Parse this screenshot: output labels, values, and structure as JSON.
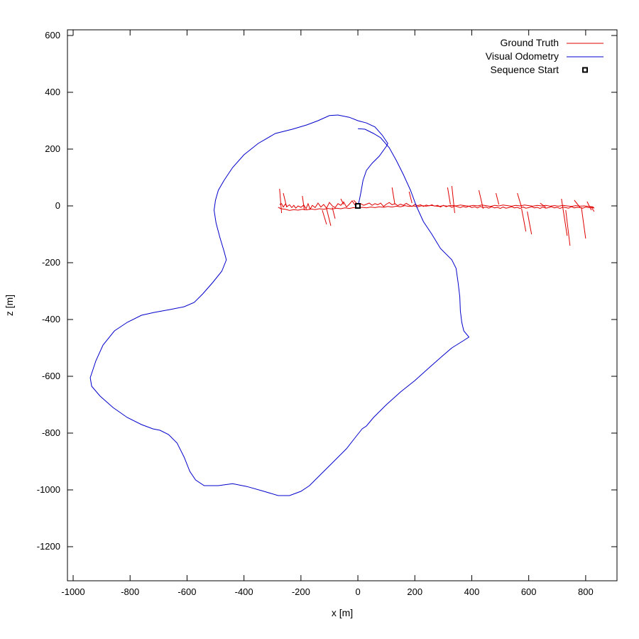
{
  "chart_data": {
    "type": "line",
    "xlabel": "x [m]",
    "ylabel": "z [m]",
    "xlim": [
      -1020,
      910
    ],
    "ylim": [
      -1320,
      620
    ],
    "xticks": [
      -1000,
      -800,
      -600,
      -400,
      -200,
      0,
      200,
      400,
      600,
      800
    ],
    "yticks": [
      600,
      400,
      200,
      0,
      -200,
      -400,
      -600,
      -800,
      -1000,
      -1200
    ],
    "grid": false,
    "legend_position": "top-right",
    "colors": {
      "ground_truth": "#e00000",
      "visual_odometry": "#0000cc",
      "start": "#000000"
    },
    "series": [
      {
        "name": "Ground Truth",
        "points": [
          [
            -275,
            5
          ],
          [
            -268,
            8
          ],
          [
            -262,
            -4
          ],
          [
            -255,
            6
          ],
          [
            -248,
            -2
          ],
          [
            -240,
            4
          ],
          [
            -232,
            -6
          ],
          [
            -225,
            2
          ],
          [
            -218,
            -8
          ],
          [
            -210,
            0
          ],
          [
            -200,
            -5
          ],
          [
            -190,
            3
          ],
          [
            -182,
            -10
          ],
          [
            -175,
            8
          ],
          [
            -168,
            -12
          ],
          [
            -160,
            2
          ],
          [
            -150,
            -6
          ],
          [
            -140,
            10
          ],
          [
            -130,
            -4
          ],
          [
            -120,
            5
          ],
          [
            -110,
            -8
          ],
          [
            -100,
            12
          ],
          [
            -90,
            0
          ],
          [
            -80,
            -6
          ],
          [
            -70,
            8
          ],
          [
            -60,
            2
          ],
          [
            -50,
            14
          ],
          [
            -40,
            -4
          ],
          [
            -30,
            6
          ],
          [
            -20,
            18
          ],
          [
            -10,
            3
          ],
          [
            0,
            0
          ],
          [
            10,
            8
          ],
          [
            20,
            2
          ],
          [
            30,
            6
          ],
          [
            40,
            10
          ],
          [
            50,
            2
          ],
          [
            60,
            8
          ],
          [
            70,
            4
          ],
          [
            80,
            10
          ],
          [
            90,
            -2
          ],
          [
            100,
            6
          ],
          [
            110,
            12
          ],
          [
            120,
            4
          ],
          [
            130,
            8
          ],
          [
            140,
            1
          ],
          [
            150,
            6
          ],
          [
            160,
            2
          ],
          [
            170,
            9
          ],
          [
            180,
            3
          ],
          [
            190,
            -2
          ],
          [
            200,
            5
          ],
          [
            210,
            1
          ],
          [
            220,
            4
          ],
          [
            230,
            -2
          ],
          [
            240,
            3
          ],
          [
            250,
            0
          ],
          [
            260,
            4
          ],
          [
            270,
            -1
          ],
          [
            280,
            2
          ],
          [
            290,
            -4
          ],
          [
            300,
            2
          ],
          [
            310,
            -3
          ],
          [
            320,
            1
          ],
          [
            330,
            -5
          ],
          [
            340,
            0
          ],
          [
            350,
            -3
          ],
          [
            360,
            -6
          ],
          [
            370,
            -2
          ],
          [
            380,
            -5
          ],
          [
            390,
            -1
          ],
          [
            400,
            -6
          ],
          [
            410,
            -3
          ],
          [
            420,
            -7
          ],
          [
            430,
            -2
          ],
          [
            440,
            -6
          ],
          [
            450,
            -4
          ],
          [
            460,
            -8
          ],
          [
            470,
            -3
          ],
          [
            480,
            -7
          ],
          [
            490,
            -5
          ],
          [
            500,
            -9
          ],
          [
            510,
            -4
          ],
          [
            520,
            -8
          ],
          [
            530,
            -6
          ],
          [
            540,
            -3
          ],
          [
            550,
            -7
          ],
          [
            560,
            -5
          ],
          [
            570,
            -9
          ],
          [
            580,
            -4
          ],
          [
            590,
            -8
          ],
          [
            600,
            -6
          ],
          [
            610,
            -3
          ],
          [
            620,
            -7
          ],
          [
            630,
            -5
          ],
          [
            640,
            -9
          ],
          [
            650,
            -4
          ],
          [
            660,
            -8
          ],
          [
            670,
            -6
          ],
          [
            680,
            -3
          ],
          [
            690,
            -7
          ],
          [
            700,
            -5
          ],
          [
            710,
            -9
          ],
          [
            720,
            -4
          ],
          [
            730,
            -6
          ],
          [
            740,
            -8
          ],
          [
            750,
            -3
          ],
          [
            760,
            -7
          ],
          [
            770,
            -5
          ],
          [
            780,
            -6
          ],
          [
            790,
            -8
          ],
          [
            800,
            -4
          ],
          [
            810,
            -6
          ],
          [
            820,
            -5
          ],
          [
            830,
            -8
          ],
          [
            825,
            -3
          ],
          [
            810,
            -2
          ],
          [
            795,
            0
          ],
          [
            780,
            -1
          ],
          [
            765,
            1
          ],
          [
            750,
            -2
          ],
          [
            735,
            0
          ],
          [
            720,
            2
          ],
          [
            705,
            -1
          ],
          [
            690,
            1
          ],
          [
            675,
            -1
          ],
          [
            660,
            2
          ],
          [
            645,
            0
          ],
          [
            630,
            2
          ],
          [
            615,
            -1
          ],
          [
            600,
            1
          ],
          [
            585,
            3
          ],
          [
            570,
            0
          ],
          [
            555,
            2
          ],
          [
            540,
            -1
          ],
          [
            525,
            1
          ],
          [
            510,
            3
          ],
          [
            495,
            0
          ],
          [
            480,
            2
          ],
          [
            465,
            -2
          ],
          [
            450,
            1
          ],
          [
            435,
            3
          ],
          [
            420,
            0
          ],
          [
            405,
            2
          ],
          [
            390,
            -1
          ],
          [
            375,
            1
          ],
          [
            360,
            3
          ],
          [
            345,
            0
          ],
          [
            330,
            2
          ],
          [
            315,
            -1
          ],
          [
            300,
            1
          ],
          [
            285,
            -2
          ],
          [
            270,
            0
          ],
          [
            255,
            2
          ],
          [
            240,
            -1
          ],
          [
            225,
            1
          ],
          [
            210,
            -3
          ],
          [
            195,
            0
          ],
          [
            180,
            -2
          ],
          [
            165,
            1
          ],
          [
            150,
            -3
          ],
          [
            135,
            -1
          ],
          [
            120,
            -4
          ],
          [
            105,
            -2
          ],
          [
            90,
            -5
          ],
          [
            75,
            -3
          ],
          [
            60,
            -6
          ],
          [
            45,
            -4
          ],
          [
            30,
            -7
          ],
          [
            15,
            -5
          ],
          [
            0,
            -8
          ],
          [
            -15,
            -6
          ],
          [
            -30,
            -9
          ],
          [
            -45,
            -7
          ],
          [
            -60,
            -10
          ],
          [
            -75,
            -8
          ],
          [
            -90,
            -11
          ],
          [
            -105,
            -9
          ],
          [
            -120,
            -12
          ],
          [
            -135,
            -10
          ],
          [
            -150,
            -13
          ],
          [
            -165,
            -11
          ],
          [
            -180,
            -14
          ],
          [
            -195,
            -12
          ],
          [
            -210,
            -15
          ],
          [
            -225,
            -13
          ],
          [
            -240,
            -16
          ],
          [
            -255,
            -12
          ],
          [
            -270,
            -10
          ],
          [
            -280,
            -5
          ]
        ],
        "spikes": [
          [
            -275,
            60,
            -268,
            -25
          ],
          [
            -262,
            45,
            -250,
            -5
          ],
          [
            -195,
            35,
            -188,
            -15
          ],
          [
            -125,
            -15,
            -110,
            -65
          ],
          [
            -110,
            -10,
            -95,
            -70
          ],
          [
            -90,
            -5,
            -80,
            -45
          ],
          [
            -60,
            25,
            -50,
            5
          ],
          [
            -15,
            20,
            -5,
            10
          ],
          [
            120,
            65,
            130,
            5
          ],
          [
            180,
            50,
            190,
            10
          ],
          [
            315,
            65,
            325,
            5
          ],
          [
            330,
            70,
            340,
            -25
          ],
          [
            425,
            55,
            440,
            -10
          ],
          [
            485,
            45,
            495,
            5
          ],
          [
            560,
            45,
            575,
            -5
          ],
          [
            575,
            -10,
            590,
            -90
          ],
          [
            595,
            -20,
            610,
            -100
          ],
          [
            640,
            10,
            660,
            -5
          ],
          [
            715,
            25,
            735,
            -105
          ],
          [
            730,
            -15,
            745,
            -140
          ],
          [
            760,
            20,
            780,
            -5
          ],
          [
            785,
            -5,
            800,
            -115
          ],
          [
            805,
            15,
            820,
            -15
          ],
          [
            820,
            -5,
            830,
            -20
          ]
        ]
      },
      {
        "name": "Visual Odometry",
        "points": [
          [
            0,
            0
          ],
          [
            5,
            20
          ],
          [
            10,
            45
          ],
          [
            18,
            90
          ],
          [
            30,
            125
          ],
          [
            50,
            150
          ],
          [
            75,
            175
          ],
          [
            100,
            210
          ],
          [
            105,
            220
          ],
          [
            85,
            250
          ],
          [
            60,
            278
          ],
          [
            30,
            292
          ],
          [
            0,
            300
          ],
          [
            -30,
            312
          ],
          [
            -70,
            320
          ],
          [
            -100,
            318
          ],
          [
            -140,
            300
          ],
          [
            -180,
            285
          ],
          [
            -230,
            270
          ],
          [
            -290,
            255
          ],
          [
            -350,
            220
          ],
          [
            -400,
            180
          ],
          [
            -440,
            135
          ],
          [
            -470,
            90
          ],
          [
            -490,
            55
          ],
          [
            -500,
            20
          ],
          [
            -505,
            -15
          ],
          [
            -498,
            -60
          ],
          [
            -485,
            -110
          ],
          [
            -470,
            -160
          ],
          [
            -462,
            -190
          ],
          [
            -478,
            -230
          ],
          [
            -510,
            -270
          ],
          [
            -545,
            -310
          ],
          [
            -575,
            -340
          ],
          [
            -610,
            -355
          ],
          [
            -660,
            -365
          ],
          [
            -715,
            -375
          ],
          [
            -760,
            -385
          ],
          [
            -810,
            -410
          ],
          [
            -855,
            -440
          ],
          [
            -895,
            -490
          ],
          [
            -920,
            -545
          ],
          [
            -940,
            -605
          ],
          [
            -935,
            -635
          ],
          [
            -905,
            -670
          ],
          [
            -860,
            -710
          ],
          [
            -810,
            -745
          ],
          [
            -760,
            -770
          ],
          [
            -720,
            -785
          ],
          [
            -695,
            -790
          ],
          [
            -665,
            -805
          ],
          [
            -635,
            -835
          ],
          [
            -610,
            -885
          ],
          [
            -590,
            -935
          ],
          [
            -570,
            -965
          ],
          [
            -540,
            -985
          ],
          [
            -490,
            -985
          ],
          [
            -440,
            -978
          ],
          [
            -390,
            -988
          ],
          [
            -330,
            -1005
          ],
          [
            -280,
            -1020
          ],
          [
            -240,
            -1020
          ],
          [
            -200,
            -1005
          ],
          [
            -170,
            -985
          ],
          [
            -130,
            -945
          ],
          [
            -90,
            -905
          ],
          [
            -40,
            -855
          ],
          [
            -5,
            -810
          ],
          [
            15,
            -785
          ],
          [
            30,
            -775
          ],
          [
            55,
            -745
          ],
          [
            100,
            -700
          ],
          [
            150,
            -655
          ],
          [
            200,
            -615
          ],
          [
            250,
            -570
          ],
          [
            295,
            -530
          ],
          [
            330,
            -500
          ],
          [
            370,
            -475
          ],
          [
            390,
            -462
          ],
          [
            372,
            -440
          ],
          [
            365,
            -410
          ],
          [
            360,
            -370
          ],
          [
            358,
            -320
          ],
          [
            352,
            -270
          ],
          [
            345,
            -220
          ],
          [
            330,
            -190
          ],
          [
            290,
            -150
          ],
          [
            260,
            -100
          ],
          [
            230,
            -55
          ],
          [
            205,
            0
          ],
          [
            185,
            55
          ],
          [
            160,
            110
          ],
          [
            135,
            160
          ],
          [
            110,
            205
          ],
          [
            80,
            240
          ],
          [
            55,
            255
          ],
          [
            25,
            270
          ],
          [
            0,
            272
          ]
        ]
      }
    ],
    "start_point": {
      "name": "Sequence Start",
      "x": 0,
      "y": 0
    }
  }
}
